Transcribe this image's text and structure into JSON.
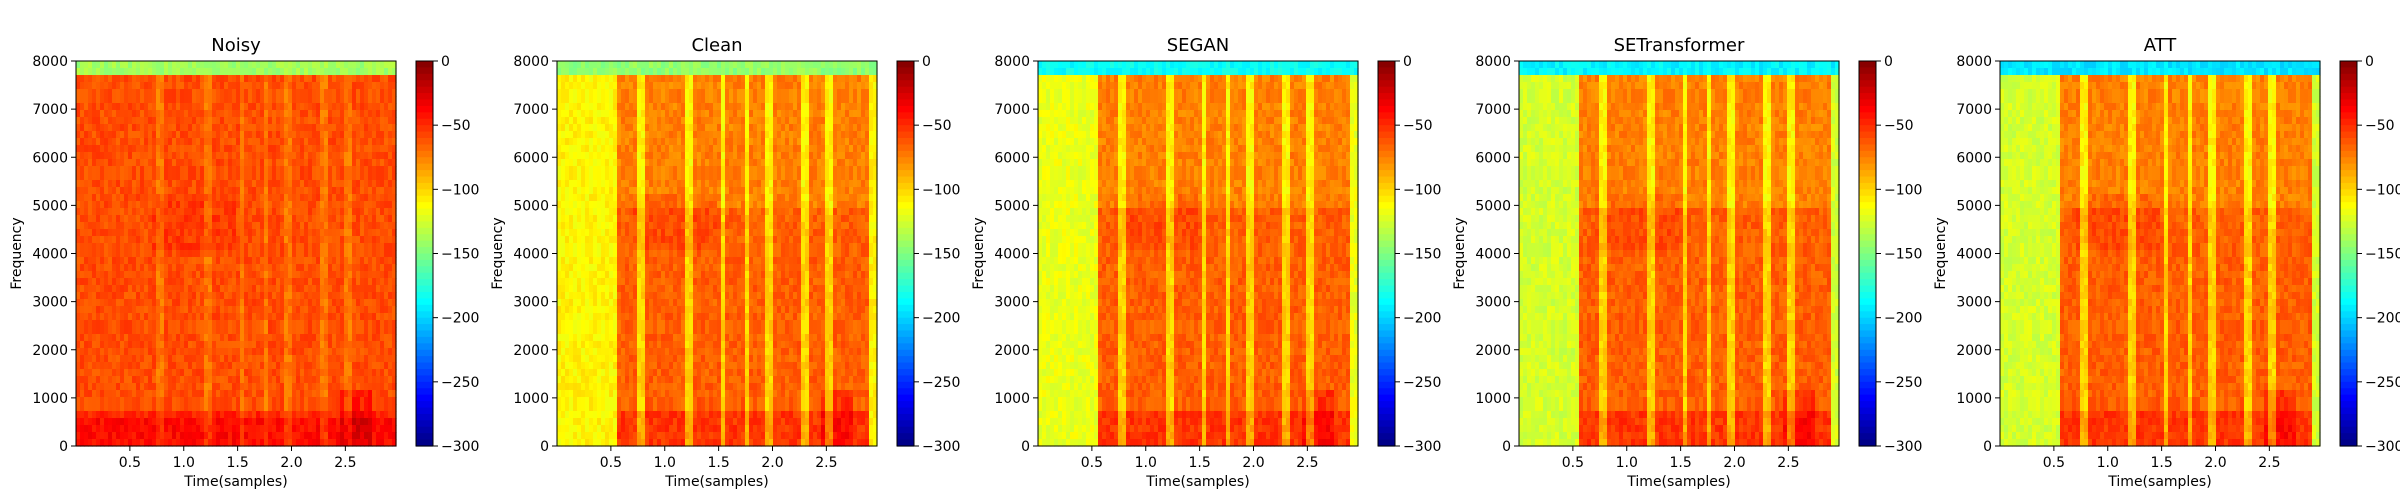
{
  "chart_data": [
    {
      "type": "heatmap",
      "title": "Noisy",
      "xlabel": "Time(samples)",
      "ylabel": "Frequency",
      "xlim": [
        0,
        2.97
      ],
      "ylim": [
        0,
        8000
      ],
      "x_ticks": [
        "0.5",
        "1.0",
        "1.5",
        "2.0",
        "2.5"
      ],
      "y_ticks": [
        "0",
        "1000",
        "2000",
        "3000",
        "4000",
        "5000",
        "6000",
        "7000",
        "8000"
      ],
      "colorbar": {
        "range": [
          -300,
          0
        ],
        "ticks": [
          "0",
          "−50",
          "−100",
          "−150",
          "−200",
          "−250",
          "−300"
        ],
        "colormap": "jet"
      },
      "approx_level_db": {
        "speech": -60,
        "silence": -75,
        "top_band": -140
      },
      "speech_region": [
        0.0,
        2.97
      ]
    },
    {
      "type": "heatmap",
      "title": "Clean",
      "xlabel": "Time(samples)",
      "ylabel": "Frequency",
      "xlim": [
        0,
        2.97
      ],
      "ylim": [
        0,
        8000
      ],
      "x_ticks": [
        "0.5",
        "1.0",
        "1.5",
        "2.0",
        "2.5"
      ],
      "y_ticks": [
        "0",
        "1000",
        "2000",
        "3000",
        "4000",
        "5000",
        "6000",
        "7000",
        "8000"
      ],
      "colorbar": {
        "range": [
          -300,
          0
        ],
        "ticks": [
          "0",
          "−50",
          "−100",
          "−150",
          "−200",
          "−250",
          "−300"
        ],
        "colormap": "jet"
      },
      "approx_level_db": {
        "speech": -65,
        "silence": -110,
        "top_band": -145
      },
      "speech_region": [
        0.55,
        2.9
      ]
    },
    {
      "type": "heatmap",
      "title": "SEGAN",
      "xlabel": "Time(samples)",
      "ylabel": "Frequency",
      "xlim": [
        0,
        2.97
      ],
      "ylim": [
        0,
        8000
      ],
      "x_ticks": [
        "0.5",
        "1.0",
        "1.5",
        "2.0",
        "2.5"
      ],
      "y_ticks": [
        "0",
        "1000",
        "2000",
        "3000",
        "4000",
        "5000",
        "6000",
        "7000",
        "8000"
      ],
      "colorbar": {
        "range": [
          -300,
          0
        ],
        "ticks": [
          "0",
          "−50",
          "−100",
          "−150",
          "−200",
          "−250",
          "−300"
        ],
        "colormap": "jet"
      },
      "approx_level_db": {
        "speech": -65,
        "silence": -118,
        "top_band": -185
      },
      "speech_region": [
        0.55,
        2.9
      ]
    },
    {
      "type": "heatmap",
      "title": "SETransformer",
      "xlabel": "Time(samples)",
      "ylabel": "Frequency",
      "xlim": [
        0,
        2.97
      ],
      "ylim": [
        0,
        8000
      ],
      "x_ticks": [
        "0.5",
        "1.0",
        "1.5",
        "2.0",
        "2.5"
      ],
      "y_ticks": [
        "0",
        "1000",
        "2000",
        "3000",
        "4000",
        "5000",
        "6000",
        "7000",
        "8000"
      ],
      "colorbar": {
        "range": [
          -300,
          0
        ],
        "ticks": [
          "0",
          "−50",
          "−100",
          "−150",
          "−200",
          "−250",
          "−300"
        ],
        "colormap": "jet"
      },
      "approx_level_db": {
        "speech": -65,
        "silence": -125,
        "top_band": -190
      },
      "speech_region": [
        0.55,
        2.9
      ]
    },
    {
      "type": "heatmap",
      "title": "ATT",
      "xlabel": "Time(samples)",
      "ylabel": "Frequency",
      "xlim": [
        0,
        2.97
      ],
      "ylim": [
        0,
        8000
      ],
      "x_ticks": [
        "0.5",
        "1.0",
        "1.5",
        "2.0",
        "2.5"
      ],
      "y_ticks": [
        "0",
        "1000",
        "2000",
        "3000",
        "4000",
        "5000",
        "6000",
        "7000",
        "8000"
      ],
      "colorbar": {
        "range": [
          -300,
          0
        ],
        "ticks": [
          "0",
          "−50",
          "−100",
          "−150",
          "−200",
          "−250",
          "−300"
        ],
        "colormap": "jet"
      },
      "approx_level_db": {
        "speech": -65,
        "silence": -125,
        "top_band": -195
      },
      "speech_region": [
        0.55,
        2.9
      ]
    }
  ]
}
